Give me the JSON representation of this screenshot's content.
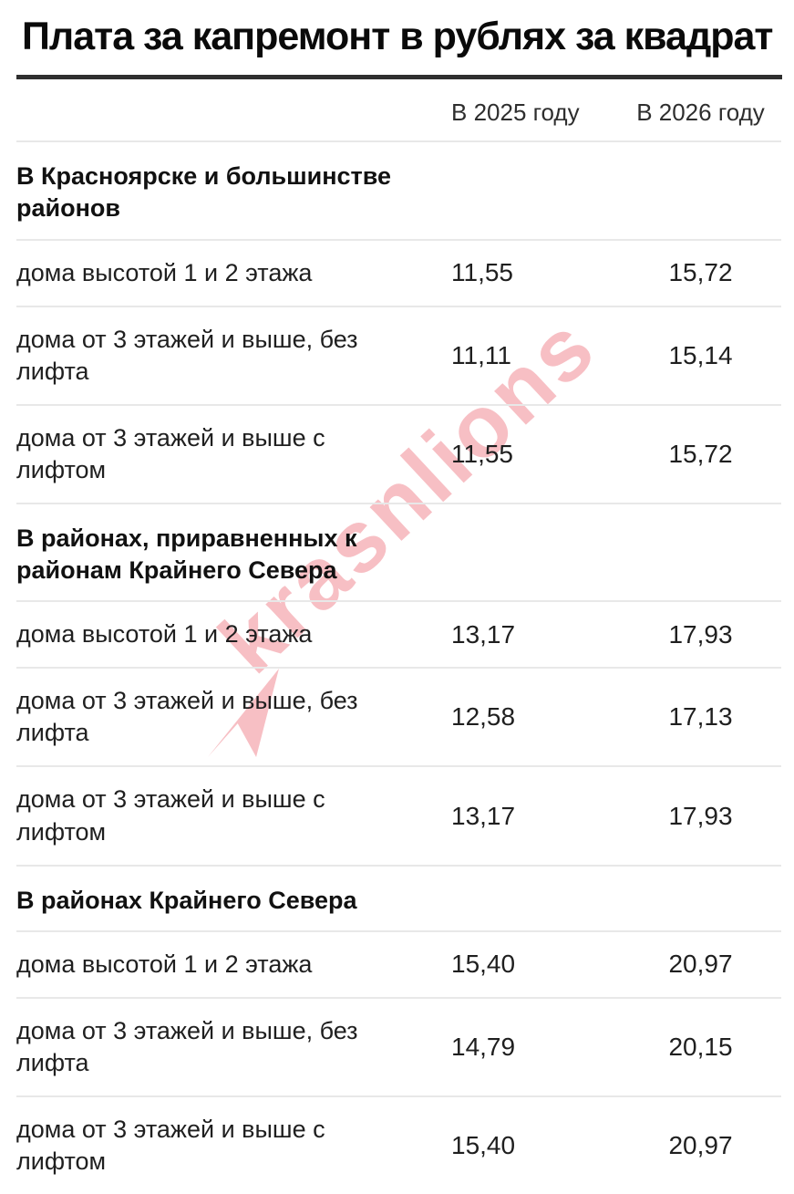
{
  "title": "Плата за капремонт в рублях за квадрат",
  "columns": {
    "col_2025": "В 2025 году",
    "col_2026": "В 2026 году"
  },
  "sections": [
    {
      "header": "В Красноярске и большинстве районов",
      "rows": [
        {
          "label": "дома высотой 1 и 2 этажа",
          "v2025": "11,55",
          "v2026": "15,72"
        },
        {
          "label": "дома от 3 этажей и выше, без лифта",
          "v2025": "11,11",
          "v2026": "15,14"
        },
        {
          "label": "дома от 3 этажей и выше с лифтом",
          "v2025": "11,55",
          "v2026": "15,72"
        }
      ]
    },
    {
      "header": "В районах, приравненных к районам Крайнего Севера",
      "rows": [
        {
          "label": "дома высотой 1 и 2 этажа",
          "v2025": "13,17",
          "v2026": "17,93"
        },
        {
          "label": "дома от 3 этажей и выше, без лифта",
          "v2025": "12,58",
          "v2026": "17,13"
        },
        {
          "label": "дома от 3 этажей и выше с лифтом",
          "v2025": "13,17",
          "v2026": "17,93"
        }
      ]
    },
    {
      "header": "В районах Крайнего Севера",
      "rows": [
        {
          "label": "дома высотой 1 и 2 этажа",
          "v2025": "15,40",
          "v2026": "20,97"
        },
        {
          "label": "дома от 3 этажей и выше, без лифта",
          "v2025": "14,79",
          "v2026": "20,15"
        },
        {
          "label": "дома от 3 этажей и выше с лифтом",
          "v2025": "15,40",
          "v2026": "20,97"
        }
      ]
    }
  ],
  "watermark": {
    "text": "krasnlions",
    "color_rgba": "rgba(230,57,70,0.32)"
  },
  "style": {
    "accent_rule": "#2f2f2f",
    "divider": "#e8e8e8"
  },
  "chart_data": {
    "type": "table",
    "title": "Плата за капремонт в рублях за квадрат",
    "columns": [
      "",
      "В 2025 году",
      "В 2026 году"
    ],
    "groups": [
      {
        "group": "В Красноярске и большинстве районов",
        "rows": [
          [
            "дома высотой 1 и 2 этажа",
            11.55,
            15.72
          ],
          [
            "дома от 3 этажей и выше, без лифта",
            11.11,
            15.14
          ],
          [
            "дома от 3 этажей и выше с лифтом",
            11.55,
            15.72
          ]
        ]
      },
      {
        "group": "В районах, приравненных к районам Крайнего Севера",
        "rows": [
          [
            "дома высотой 1 и 2 этажа",
            13.17,
            17.93
          ],
          [
            "дома от 3 этажей и выше, без лифта",
            12.58,
            17.13
          ],
          [
            "дома от 3 этажей и выше с лифтом",
            13.17,
            17.93
          ]
        ]
      },
      {
        "group": "В районах Крайнего Севера",
        "rows": [
          [
            "дома высотой 1 и 2 этажа",
            15.4,
            20.97
          ],
          [
            "дома от 3 этажей и выше, без лифта",
            14.79,
            20.15
          ],
          [
            "дома от 3 этажей и выше с лифтом",
            15.4,
            20.97
          ]
        ]
      }
    ]
  }
}
